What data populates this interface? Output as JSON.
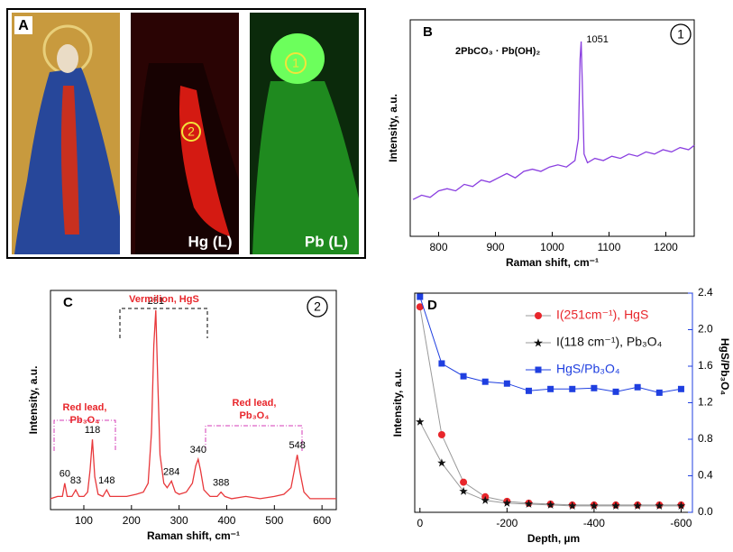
{
  "panel_a": {
    "label": "A",
    "maps": [
      "Hg (L)",
      "Pb (L)"
    ],
    "points": [
      "2",
      "1"
    ]
  },
  "chart_data": [
    {
      "type": "line",
      "label": "B",
      "point": "1",
      "formula": "2PbCO₃ · Pb(OH)₂",
      "xlabel": "Raman shift, cm⁻¹",
      "ylabel": "Intensity, a.u.",
      "x": [
        755,
        770,
        785,
        800,
        815,
        830,
        845,
        860,
        875,
        890,
        905,
        920,
        935,
        950,
        965,
        980,
        995,
        1010,
        1025,
        1040,
        1046,
        1049,
        1051,
        1053,
        1056,
        1062,
        1075,
        1090,
        1105,
        1120,
        1135,
        1150,
        1165,
        1180,
        1195,
        1210,
        1225,
        1240,
        1250
      ],
      "values": [
        0.17,
        0.19,
        0.18,
        0.21,
        0.22,
        0.21,
        0.24,
        0.23,
        0.26,
        0.25,
        0.27,
        0.29,
        0.27,
        0.3,
        0.31,
        0.3,
        0.32,
        0.33,
        0.32,
        0.35,
        0.45,
        0.82,
        0.9,
        0.7,
        0.38,
        0.34,
        0.36,
        0.35,
        0.37,
        0.36,
        0.38,
        0.37,
        0.39,
        0.38,
        0.4,
        0.39,
        0.41,
        0.4,
        0.42
      ],
      "color": "#8a3fe0",
      "peak_labels": [
        1051
      ],
      "xlim": [
        750,
        1250
      ],
      "xticks": [
        800,
        900,
        1000,
        1100,
        1200
      ],
      "ylim": [
        0,
        1
      ]
    },
    {
      "type": "line",
      "label": "C",
      "point": "2",
      "xlabel": "Raman shift, cm⁻¹",
      "ylabel": "Intensity, a.u.",
      "annotations": [
        "Vermilion, HgS",
        "Red lead,",
        "Pb₃O₄",
        "Red lead,",
        "Pb₃O₄"
      ],
      "x": [
        30,
        45,
        55,
        60,
        65,
        75,
        83,
        90,
        100,
        108,
        113,
        118,
        123,
        130,
        140,
        148,
        155,
        170,
        190,
        210,
        225,
        235,
        242,
        247,
        251,
        255,
        260,
        268,
        275,
        284,
        292,
        300,
        315,
        328,
        335,
        340,
        345,
        352,
        365,
        380,
        388,
        396,
        410,
        440,
        470,
        500,
        520,
        535,
        542,
        548,
        554,
        562,
        575,
        600,
        630
      ],
      "values": [
        0.05,
        0.06,
        0.06,
        0.12,
        0.06,
        0.06,
        0.09,
        0.06,
        0.06,
        0.08,
        0.18,
        0.32,
        0.15,
        0.07,
        0.06,
        0.09,
        0.06,
        0.06,
        0.06,
        0.07,
        0.08,
        0.12,
        0.35,
        0.75,
        0.91,
        0.6,
        0.25,
        0.12,
        0.1,
        0.13,
        0.08,
        0.07,
        0.08,
        0.12,
        0.2,
        0.23,
        0.18,
        0.09,
        0.06,
        0.06,
        0.08,
        0.06,
        0.05,
        0.06,
        0.05,
        0.06,
        0.07,
        0.1,
        0.18,
        0.25,
        0.17,
        0.08,
        0.05,
        0.05,
        0.05
      ],
      "color": "#e8383b",
      "peak_labels": [
        60,
        83,
        118,
        148,
        251,
        284,
        340,
        388,
        548
      ],
      "xlim": [
        30,
        630
      ],
      "xticks": [
        100,
        200,
        300,
        400,
        500,
        600
      ],
      "ylim": [
        0,
        1
      ]
    },
    {
      "type": "line",
      "label": "D",
      "xlabel": "Depth, µm",
      "ylabel": "Intensity, a.u.",
      "y2label": "HgS/Pb₃O₄",
      "x": [
        0,
        -50,
        -100,
        -150,
        -200,
        -250,
        -300,
        -350,
        -400,
        -450,
        -500,
        -550,
        -600
      ],
      "series": [
        {
          "name": "I(251cm⁻¹), HgS",
          "color": "#e8262b",
          "line_color": "#999999",
          "marker": "circle",
          "values": [
            2.25,
            0.85,
            0.33,
            0.17,
            0.12,
            0.1,
            0.09,
            0.08,
            0.08,
            0.08,
            0.08,
            0.08,
            0.08
          ]
        },
        {
          "name": "I(118 cm⁻¹), Pb₃O₄",
          "color": "#111111",
          "line_color": "#999999",
          "marker": "star",
          "values": [
            0.99,
            0.54,
            0.23,
            0.13,
            0.1,
            0.09,
            0.08,
            0.07,
            0.07,
            0.07,
            0.07,
            0.07,
            0.07
          ]
        },
        {
          "name": "HgS/Pb₃O₄",
          "color": "#1f3fe0",
          "line_color": "#1f3fe0",
          "marker": "square",
          "axis": "y2",
          "values": [
            2.36,
            1.63,
            1.49,
            1.43,
            1.41,
            1.33,
            1.35,
            1.35,
            1.36,
            1.32,
            1.37,
            1.31,
            1.35
          ]
        }
      ],
      "xlim": [
        12,
        -626
      ],
      "xticks": [
        0,
        -200,
        -400,
        -600
      ],
      "ylim": [
        0,
        2.4
      ],
      "y2lim": [
        0,
        2.4
      ],
      "y2ticks": [
        {
          "value": 0,
          "label": "0.0"
        },
        0.4,
        0.8,
        1.2,
        1.6,
        {
          "value": 2,
          "label": "2.0"
        },
        2.4
      ],
      "y2color": "#1f3fe0",
      "legend": "upper right"
    }
  ]
}
